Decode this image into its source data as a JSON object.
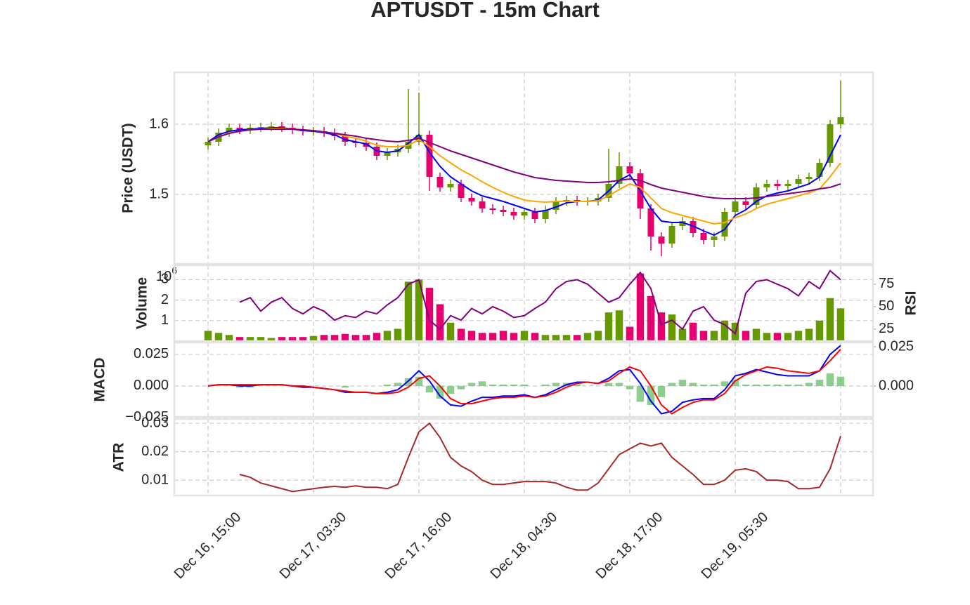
{
  "title": "APTUSDT - 15m Chart",
  "chart_data": [
    {
      "type": "candlestick",
      "ylabel": "Price (USDT)",
      "ylim": [
        1.401,
        1.674
      ],
      "yticks": [
        1.5,
        1.6
      ],
      "grid": true,
      "color_up": "#669900",
      "color_down": "#e6006e",
      "candles": [
        [
          1.57,
          1.581,
          1.564,
          1.575
        ],
        [
          1.575,
          1.594,
          1.569,
          1.588
        ],
        [
          1.588,
          1.601,
          1.582,
          1.595
        ],
        [
          1.595,
          1.601,
          1.586,
          1.592
        ],
        [
          1.592,
          1.601,
          1.586,
          1.595
        ],
        [
          1.595,
          1.602,
          1.589,
          1.596
        ],
        [
          1.596,
          1.603,
          1.59,
          1.597
        ],
        [
          1.597,
          1.603,
          1.589,
          1.595
        ],
        [
          1.595,
          1.601,
          1.586,
          1.592
        ],
        [
          1.592,
          1.598,
          1.584,
          1.59
        ],
        [
          1.59,
          1.596,
          1.584,
          1.59
        ],
        [
          1.59,
          1.596,
          1.582,
          1.588
        ],
        [
          1.588,
          1.594,
          1.577,
          1.583
        ],
        [
          1.583,
          1.589,
          1.569,
          1.575
        ],
        [
          1.575,
          1.581,
          1.567,
          1.573
        ],
        [
          1.573,
          1.579,
          1.562,
          1.568
        ],
        [
          1.568,
          1.574,
          1.549,
          1.555
        ],
        [
          1.555,
          1.566,
          1.549,
          1.56
        ],
        [
          1.56,
          1.571,
          1.554,
          1.565
        ],
        [
          1.565,
          1.65,
          1.559,
          1.575
        ],
        [
          1.575,
          1.645,
          1.57,
          1.585
        ],
        [
          1.585,
          1.591,
          1.505,
          1.525
        ],
        [
          1.525,
          1.531,
          1.504,
          1.51
        ],
        [
          1.51,
          1.521,
          1.504,
          1.515
        ],
        [
          1.515,
          1.521,
          1.489,
          1.495
        ],
        [
          1.495,
          1.501,
          1.484,
          1.49
        ],
        [
          1.49,
          1.496,
          1.474,
          1.48
        ],
        [
          1.48,
          1.486,
          1.472,
          1.478
        ],
        [
          1.478,
          1.484,
          1.469,
          1.475
        ],
        [
          1.475,
          1.481,
          1.464,
          1.47
        ],
        [
          1.47,
          1.481,
          1.464,
          1.475
        ],
        [
          1.475,
          1.481,
          1.459,
          1.465
        ],
        [
          1.465,
          1.484,
          1.459,
          1.478
        ],
        [
          1.478,
          1.496,
          1.472,
          1.49
        ],
        [
          1.49,
          1.498,
          1.484,
          1.492
        ],
        [
          1.492,
          1.498,
          1.484,
          1.49
        ],
        [
          1.49,
          1.496,
          1.484,
          1.49
        ],
        [
          1.49,
          1.501,
          1.484,
          1.495
        ],
        [
          1.495,
          1.565,
          1.489,
          1.515
        ],
        [
          1.515,
          1.56,
          1.509,
          1.54
        ],
        [
          1.54,
          1.546,
          1.524,
          1.53
        ],
        [
          1.53,
          1.536,
          1.465,
          1.48
        ],
        [
          1.48,
          1.486,
          1.42,
          1.44
        ],
        [
          1.44,
          1.446,
          1.412,
          1.43
        ],
        [
          1.43,
          1.461,
          1.424,
          1.455
        ],
        [
          1.455,
          1.468,
          1.449,
          1.462
        ],
        [
          1.462,
          1.468,
          1.439,
          1.445
        ],
        [
          1.445,
          1.451,
          1.429,
          1.435
        ],
        [
          1.435,
          1.446,
          1.425,
          1.44
        ],
        [
          1.44,
          1.481,
          1.434,
          1.475
        ],
        [
          1.475,
          1.496,
          1.469,
          1.49
        ],
        [
          1.49,
          1.496,
          1.479,
          1.485
        ],
        [
          1.485,
          1.516,
          1.479,
          1.51
        ],
        [
          1.51,
          1.521,
          1.504,
          1.515
        ],
        [
          1.515,
          1.521,
          1.506,
          1.512
        ],
        [
          1.512,
          1.521,
          1.506,
          1.515
        ],
        [
          1.515,
          1.528,
          1.509,
          1.522
        ],
        [
          1.522,
          1.531,
          1.516,
          1.525
        ],
        [
          1.525,
          1.551,
          1.519,
          1.545
        ],
        [
          1.545,
          1.606,
          1.539,
          1.6
        ],
        [
          1.6,
          1.662,
          1.594,
          1.61
        ]
      ],
      "series": [
        {
          "color": "#0000ff",
          "values": [
            1.575,
            1.585,
            1.59,
            1.592,
            1.593,
            1.594,
            1.595,
            1.595,
            1.593,
            1.591,
            1.59,
            1.588,
            1.585,
            1.578,
            1.575,
            1.572,
            1.562,
            1.56,
            1.562,
            1.573,
            1.585,
            1.56,
            1.54,
            1.525,
            1.515,
            1.505,
            1.498,
            1.494,
            1.49,
            1.485,
            1.48,
            1.475,
            1.477,
            1.482,
            1.488,
            1.49,
            1.49,
            1.492,
            1.505,
            1.52,
            1.528,
            1.505,
            1.48,
            1.462,
            1.46,
            1.46,
            1.455,
            1.448,
            1.442,
            1.45,
            1.47,
            1.478,
            1.49,
            1.498,
            1.502,
            1.505,
            1.51,
            1.515,
            1.525,
            1.555,
            1.585
          ]
        },
        {
          "color": "#ffa500",
          "values": [
            1.575,
            1.582,
            1.588,
            1.59,
            1.592,
            1.593,
            1.594,
            1.594,
            1.593,
            1.592,
            1.591,
            1.589,
            1.587,
            1.583,
            1.58,
            1.576,
            1.57,
            1.568,
            1.568,
            1.57,
            1.578,
            1.568,
            1.555,
            1.545,
            1.535,
            1.527,
            1.518,
            1.51,
            1.503,
            1.497,
            1.492,
            1.49,
            1.489,
            1.49,
            1.49,
            1.49,
            1.49,
            1.491,
            1.498,
            1.507,
            1.515,
            1.51,
            1.495,
            1.48,
            1.474,
            1.47,
            1.466,
            1.462,
            1.458,
            1.46,
            1.467,
            1.472,
            1.48,
            1.486,
            1.49,
            1.494,
            1.498,
            1.502,
            1.508,
            1.525,
            1.545
          ]
        },
        {
          "color": "#800080",
          "values": [
            1.575,
            1.582,
            1.587,
            1.59,
            1.592,
            1.593,
            1.593,
            1.593,
            1.593,
            1.592,
            1.591,
            1.589,
            1.587,
            1.585,
            1.583,
            1.58,
            1.578,
            1.576,
            1.575,
            1.577,
            1.58,
            1.574,
            1.568,
            1.562,
            1.557,
            1.552,
            1.547,
            1.542,
            1.537,
            1.532,
            1.528,
            1.524,
            1.522,
            1.52,
            1.519,
            1.518,
            1.517,
            1.517,
            1.518,
            1.52,
            1.522,
            1.52,
            1.514,
            1.509,
            1.506,
            1.503,
            1.5,
            1.497,
            1.495,
            1.494,
            1.494,
            1.494,
            1.495,
            1.497,
            1.499,
            1.501,
            1.503,
            1.505,
            1.508,
            1.51,
            1.515
          ]
        }
      ]
    },
    {
      "type": "bar",
      "ylabel": "Volume",
      "offset_label": {
        "base": "10",
        "exponent": "6"
      },
      "ylim": [
        0,
        3.7
      ],
      "yticks": [
        1,
        2,
        3
      ],
      "grid": true,
      "values": [
        0.5,
        0.4,
        0.3,
        0.2,
        0.2,
        0.2,
        0.15,
        0.2,
        0.2,
        0.2,
        0.25,
        0.3,
        0.3,
        0.35,
        0.3,
        0.3,
        0.4,
        0.5,
        0.6,
        2.9,
        3.0,
        2.6,
        1.8,
        0.9,
        0.6,
        0.5,
        0.4,
        0.4,
        0.5,
        0.4,
        0.5,
        0.4,
        0.3,
        0.3,
        0.3,
        0.3,
        0.4,
        0.5,
        1.4,
        1.5,
        0.7,
        3.3,
        2.2,
        1.4,
        1.3,
        0.6,
        0.9,
        0.5,
        0.5,
        1.0,
        0.9,
        0.5,
        0.6,
        0.4,
        0.4,
        0.4,
        0.5,
        0.6,
        1.0,
        2.1,
        1.6
      ],
      "y2label": "RSI",
      "y2lim": [
        11.7,
        96
      ],
      "y2ticks": [
        25,
        50,
        75
      ],
      "series": [
        {
          "color": "#800080",
          "axis": "y2",
          "values": [
            null,
            null,
            null,
            55,
            60,
            45,
            55,
            60,
            48,
            42,
            50,
            45,
            35,
            40,
            38,
            45,
            42,
            52,
            60,
            75,
            80,
            35,
            25,
            40,
            35,
            48,
            42,
            50,
            45,
            38,
            40,
            48,
            55,
            70,
            78,
            80,
            75,
            65,
            55,
            60,
            75,
            88,
            70,
            30,
            35,
            25,
            45,
            50,
            35,
            30,
            20,
            65,
            78,
            80,
            75,
            70,
            62,
            78,
            70,
            90,
            80
          ]
        }
      ]
    },
    {
      "type": "macd",
      "ylabel": "MACD",
      "ylim": [
        -0.0245,
        0.0344
      ],
      "yticks": [
        {
          "value": -0.025,
          "label": "−0.025"
        },
        {
          "value": 0,
          "label": "0.000"
        },
        {
          "value": 0.025,
          "label": "0.025"
        }
      ],
      "grid": true,
      "y2lim": [
        -0.0196,
        0.0277
      ],
      "y2ticks": [
        {
          "value": 0,
          "label": "0.000"
        },
        {
          "value": 0.025,
          "label": "0.025"
        }
      ],
      "series": [
        {
          "color": "#0000ff",
          "values": [
            0,
            0.001,
            0.001,
            0,
            0,
            0.001,
            0.001,
            0.001,
            0,
            -0.001,
            -0.001,
            -0.002,
            -0.003,
            -0.005,
            -0.005,
            -0.005,
            -0.006,
            -0.005,
            -0.003,
            0.004,
            0.012,
            0.004,
            -0.008,
            -0.015,
            -0.016,
            -0.012,
            -0.009,
            -0.009,
            -0.008,
            -0.008,
            -0.007,
            -0.009,
            -0.007,
            -0.003,
            0.001,
            0.003,
            0.003,
            0.002,
            0.006,
            0.012,
            0.013,
            0.002,
            -0.012,
            -0.022,
            -0.02,
            -0.013,
            -0.011,
            -0.01,
            -0.01,
            -0.003,
            0.008,
            0.01,
            0.013,
            0.011,
            0.009,
            0.008,
            0.008,
            0.008,
            0.012,
            0.025,
            0.032
          ]
        },
        {
          "color": "#ff0000",
          "values": [
            0,
            0.001,
            0.001,
            0.001,
            0.001,
            0.001,
            0.001,
            0.001,
            0,
            0,
            -0.001,
            -0.002,
            -0.003,
            -0.004,
            -0.005,
            -0.005,
            -0.006,
            -0.006,
            -0.005,
            -0.001,
            0.006,
            0.008,
            0,
            -0.01,
            -0.014,
            -0.014,
            -0.012,
            -0.01,
            -0.009,
            -0.009,
            -0.008,
            -0.009,
            -0.008,
            -0.005,
            -0.001,
            0.002,
            0.003,
            0.002,
            0.004,
            0.01,
            0.015,
            0.012,
            0,
            -0.015,
            -0.022,
            -0.017,
            -0.013,
            -0.011,
            -0.011,
            -0.006,
            0.004,
            0.009,
            0.012,
            0.015,
            0.014,
            0.012,
            0.011,
            0.01,
            0.012,
            0.02,
            0.029
          ]
        }
      ],
      "histogram": {
        "color": "#5cb85c",
        "axis": "y2",
        "values": [
          0,
          0,
          0,
          -0.001,
          -0.001,
          0,
          0,
          0,
          0,
          -0.001,
          0,
          0,
          0,
          -0.001,
          0,
          0,
          0,
          0.001,
          0.002,
          0.005,
          0.006,
          -0.004,
          -0.008,
          -0.005,
          -0.002,
          0.002,
          0.003,
          0.001,
          0.001,
          0.001,
          0.001,
          0,
          0.001,
          0.002,
          0.002,
          0.001,
          0,
          0,
          0.002,
          0.002,
          -0.002,
          -0.01,
          -0.012,
          -0.007,
          0.002,
          0.004,
          0.002,
          0.001,
          0.001,
          0.003,
          0.004,
          0.001,
          0.001,
          0.001,
          0.001,
          0.001,
          0.001,
          0.002,
          0.004,
          0.008,
          0.006
        ]
      }
    },
    {
      "type": "line",
      "ylabel": "ATR",
      "ylim": [
        0.0046,
        0.0315
      ],
      "yticks": [
        0.01,
        0.02,
        0.03
      ],
      "grid": true,
      "xlim": [
        -3.2,
        63.07
      ],
      "xticks": [
        {
          "value": 0,
          "label": "Dec 16, 15:00"
        },
        {
          "value": 10,
          "label": "Dec 17, 03:30"
        },
        {
          "value": 20,
          "label": "Dec 17, 16:00"
        },
        {
          "value": 30,
          "label": "Dec 18, 04:30"
        },
        {
          "value": 40,
          "label": "Dec 18, 17:00"
        },
        {
          "value": 50,
          "label": "Dec 19, 05:30"
        },
        {
          "value": 60,
          "label": null
        }
      ],
      "series": [
        {
          "color": "#a52a2a",
          "values": [
            null,
            null,
            null,
            0.012,
            0.011,
            0.009,
            0.008,
            0.007,
            0.006,
            0.0065,
            0.007,
            0.0075,
            0.0078,
            0.0075,
            0.008,
            0.0075,
            0.0075,
            0.007,
            0.0085,
            0.018,
            0.027,
            0.03,
            0.025,
            0.018,
            0.015,
            0.013,
            0.01,
            0.0085,
            0.0085,
            0.009,
            0.0095,
            0.0095,
            0.0095,
            0.009,
            0.0075,
            0.0065,
            0.0065,
            0.009,
            0.014,
            0.019,
            0.021,
            0.023,
            0.022,
            0.023,
            0.018,
            0.015,
            0.012,
            0.0085,
            0.0085,
            0.01,
            0.0135,
            0.014,
            0.013,
            0.01,
            0.01,
            0.0095,
            0.007,
            0.007,
            0.0075,
            0.014,
            0.0255
          ]
        }
      ]
    }
  ]
}
